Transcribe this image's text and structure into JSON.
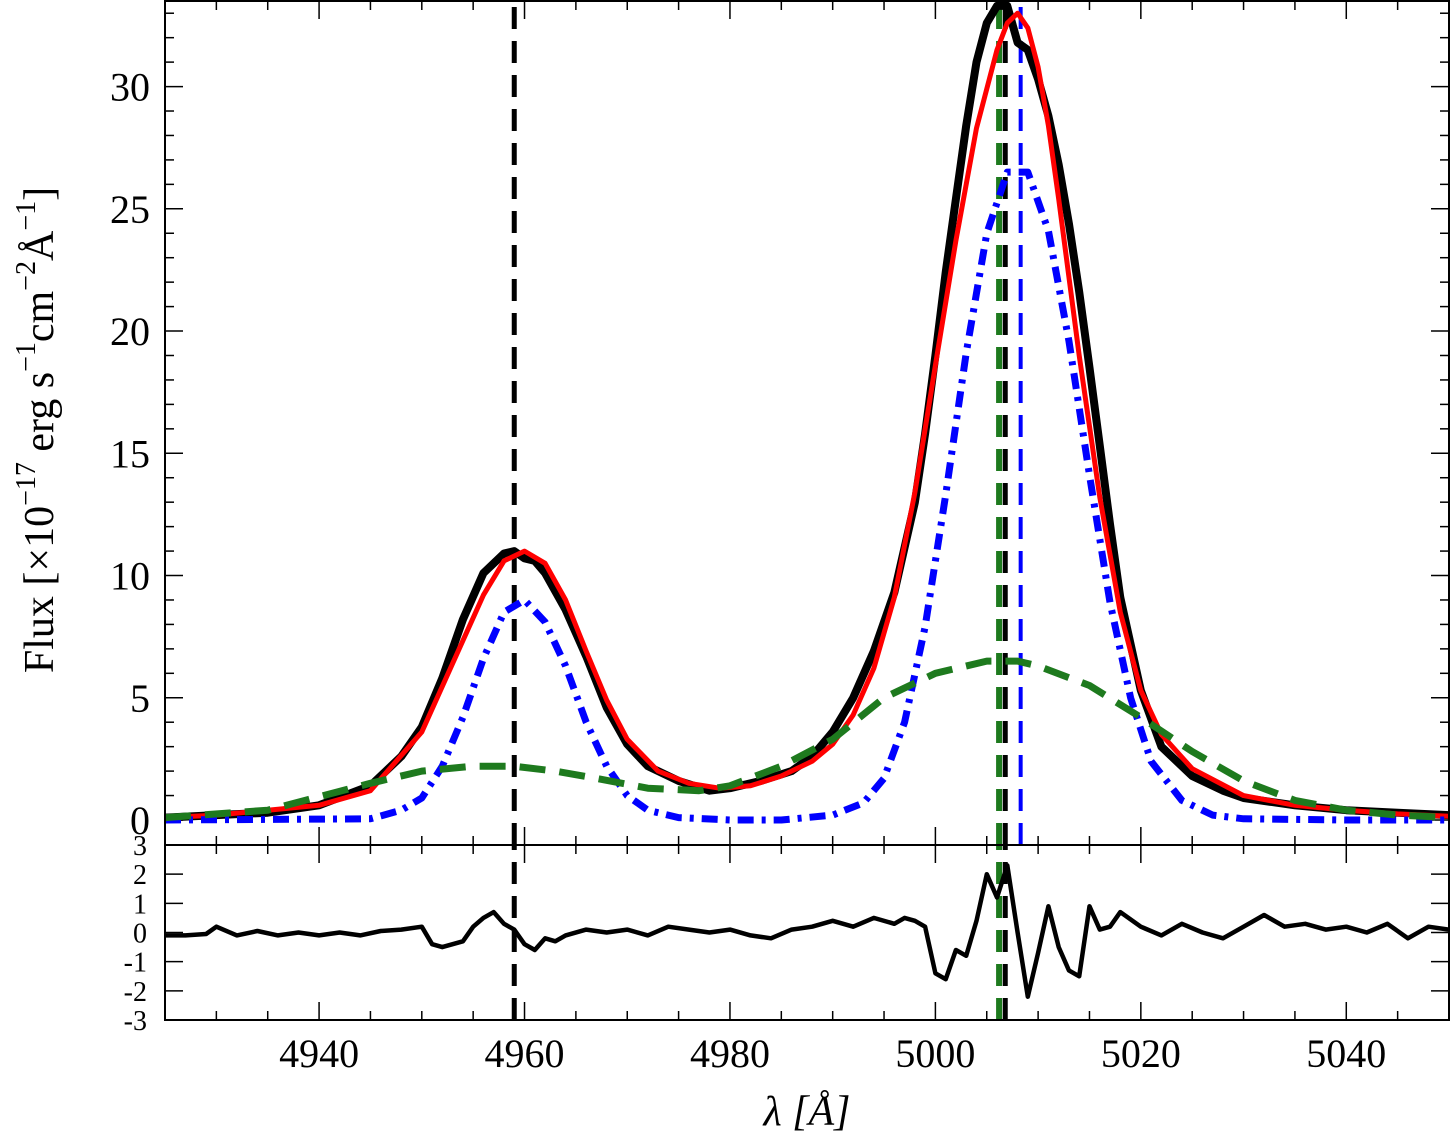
{
  "chart_data": [
    {
      "panel": "top",
      "type": "line",
      "xlabel": "λ [Å]",
      "ylabel": "Flux [×10⁻¹⁷ erg s⁻¹ cm⁻² Å⁻¹]",
      "ylabel_parts": {
        "prefix": "Flux [×10",
        "exp1": "−17",
        "mid1": " erg s",
        "exp2": "−1",
        "mid2": "cm",
        "exp3": "−2",
        "mid3": "Å",
        "exp4": "−1",
        "suffix": "]"
      },
      "xlim": [
        4925,
        5050
      ],
      "ylim": [
        0,
        33.5
      ],
      "xticks": [
        4940,
        4960,
        4980,
        5000,
        5020,
        5040
      ],
      "yticks": [
        0,
        5,
        10,
        15,
        20,
        25,
        30
      ],
      "ytick_labels": [
        "0",
        "5",
        "10",
        "15",
        "20",
        "25",
        "30"
      ],
      "series": [
        {
          "style": "data",
          "color": "#000000",
          "x": [
            4925,
            4930,
            4935,
            4940,
            4945,
            4948,
            4950,
            4952,
            4954,
            4956,
            4958,
            4959,
            4960,
            4961,
            4962,
            4964,
            4966,
            4968,
            4970,
            4972,
            4975,
            4978,
            4980,
            4983,
            4986,
            4988,
            4990,
            4992,
            4994,
            4996,
            4998,
            4999,
            5000,
            5001,
            5002,
            5003,
            5004,
            5005,
            5006,
            5007,
            5008,
            5009,
            5010,
            5011,
            5012,
            5013,
            5014,
            5015,
            5016,
            5017,
            5018,
            5020,
            5022,
            5025,
            5028,
            5030,
            5035,
            5040,
            5045,
            5050
          ],
          "y": [
            0.1,
            0.2,
            0.3,
            0.6,
            1.4,
            2.6,
            3.8,
            5.8,
            8.2,
            10.1,
            10.9,
            11.0,
            10.7,
            10.6,
            10.1,
            8.6,
            6.7,
            4.6,
            3.1,
            2.2,
            1.6,
            1.2,
            1.3,
            1.6,
            2.0,
            2.6,
            3.6,
            5.0,
            6.9,
            9.3,
            13.0,
            15.8,
            19.0,
            22.4,
            25.4,
            28.4,
            31.0,
            32.6,
            33.3,
            33.3,
            31.8,
            31.5,
            30.3,
            28.8,
            26.8,
            24.4,
            21.6,
            18.5,
            15.3,
            12.1,
            9.1,
            5.3,
            3.0,
            1.8,
            1.2,
            0.9,
            0.6,
            0.4,
            0.3,
            0.2
          ]
        },
        {
          "style": "total fit",
          "color": "#ff0000",
          "x": [
            4925,
            4930,
            4935,
            4940,
            4945,
            4950,
            4953,
            4956,
            4958,
            4960,
            4962,
            4964,
            4966,
            4968,
            4970,
            4973,
            4976,
            4979,
            4982,
            4985,
            4988,
            4990,
            4992,
            4994,
            4996,
            4998,
            5000,
            5002,
            5004,
            5006,
            5007,
            5008,
            5009,
            5010,
            5011,
            5012,
            5014,
            5016,
            5018,
            5020,
            5022,
            5025,
            5030,
            5035,
            5040,
            5045,
            5050
          ],
          "y": [
            0.1,
            0.2,
            0.4,
            0.6,
            1.2,
            3.6,
            6.4,
            9.2,
            10.6,
            11.0,
            10.5,
            9.0,
            6.9,
            4.9,
            3.3,
            2.0,
            1.5,
            1.3,
            1.4,
            1.8,
            2.4,
            3.1,
            4.3,
            6.2,
            9.1,
            13.4,
            18.6,
            23.7,
            28.3,
            31.5,
            32.6,
            33.0,
            32.4,
            30.8,
            28.4,
            25.4,
            19.0,
            13.2,
            8.5,
            5.3,
            3.5,
            2.1,
            1.0,
            0.6,
            0.4,
            0.25,
            0.15
          ]
        },
        {
          "style": "narrow component",
          "color": "#0000ff",
          "x": [
            4925,
            4945,
            4948,
            4950,
            4952,
            4954,
            4956,
            4958,
            4960,
            4962,
            4964,
            4966,
            4968,
            4970,
            4972,
            4975,
            4980,
            4985,
            4990,
            4993,
            4995,
            4997,
            4999,
            5001,
            5003,
            5005,
            5007,
            5009,
            5011,
            5013,
            5015,
            5017,
            5019,
            5021,
            5024,
            5027,
            5030,
            5040,
            5050
          ],
          "y": [
            0,
            0.05,
            0.4,
            0.9,
            2.2,
            4.2,
            6.6,
            8.5,
            9.0,
            8.1,
            6.3,
            4.0,
            2.2,
            1.0,
            0.4,
            0.1,
            0.0,
            0.0,
            0.2,
            0.7,
            1.7,
            4.0,
            7.9,
            13.3,
            19.1,
            24.0,
            26.5,
            26.5,
            24.1,
            19.6,
            14.1,
            8.9,
            5.0,
            2.4,
            0.8,
            0.2,
            0.05,
            0,
            0
          ]
        },
        {
          "style": "broad component",
          "color": "#1e7a1e",
          "x": [
            4925,
            4935,
            4945,
            4950,
            4955,
            4959,
            4963,
            4967,
            4972,
            4977,
            4980,
            4985,
            4990,
            4995,
            5000,
            5005,
            5008,
            5010,
            5015,
            5020,
            5025,
            5030,
            5035,
            5040,
            5045,
            5050
          ],
          "y": [
            0.1,
            0.4,
            1.5,
            2.0,
            2.2,
            2.2,
            2.0,
            1.7,
            1.3,
            1.2,
            1.4,
            2.2,
            3.3,
            5.0,
            6.0,
            6.5,
            6.5,
            6.3,
            5.5,
            4.2,
            2.8,
            1.6,
            0.8,
            0.4,
            0.2,
            0.1
          ]
        }
      ],
      "vlines": [
        {
          "x": 4959.0,
          "color": "#000000",
          "style": "dashed"
        },
        {
          "x": 5006.8,
          "color": "#000000",
          "style": "dashed"
        },
        {
          "x": 5006.2,
          "color": "#1e7a1e",
          "style": "dashed"
        },
        {
          "x": 5008.3,
          "color": "#0000ff",
          "style": "dashed"
        }
      ]
    },
    {
      "panel": "bottom",
      "type": "line",
      "ylim": [
        -3,
        3
      ],
      "yticks": [
        -3,
        -2,
        -1,
        0,
        1,
        2,
        3
      ],
      "ytick_labels": [
        "-3",
        "-2",
        "-1",
        "0",
        "1",
        "2",
        "3"
      ],
      "series": [
        {
          "style": "residuals",
          "color": "#000000",
          "x": [
            4925,
            4927,
            4929,
            4930,
            4932,
            4934,
            4936,
            4938,
            4940,
            4942,
            4944,
            4946,
            4948,
            4950,
            4951,
            4952,
            4954,
            4955,
            4956,
            4957,
            4958,
            4959,
            4960,
            4961,
            4962,
            4963,
            4964,
            4966,
            4968,
            4970,
            4972,
            4974,
            4976,
            4978,
            4980,
            4982,
            4984,
            4986,
            4988,
            4990,
            4992,
            4994,
            4996,
            4997,
            4998,
            4999,
            5000,
            5001,
            5002,
            5003,
            5004,
            5005,
            5006,
            5007,
            5008,
            5009,
            5010,
            5011,
            5012,
            5013,
            5014,
            5015,
            5016,
            5017,
            5018,
            5020,
            5022,
            5024,
            5026,
            5028,
            5030,
            5032,
            5034,
            5036,
            5038,
            5040,
            5042,
            5044,
            5046,
            5048,
            5050
          ],
          "y": [
            -0.1,
            -0.1,
            -0.05,
            0.2,
            -0.1,
            0.05,
            -0.1,
            0.0,
            -0.1,
            0.0,
            -0.1,
            0.05,
            0.1,
            0.2,
            -0.4,
            -0.5,
            -0.3,
            0.2,
            0.5,
            0.7,
            0.3,
            0.1,
            -0.4,
            -0.6,
            -0.2,
            -0.3,
            -0.1,
            0.1,
            0.0,
            0.1,
            -0.1,
            0.2,
            0.1,
            0.0,
            0.1,
            -0.1,
            -0.2,
            0.1,
            0.2,
            0.4,
            0.2,
            0.5,
            0.3,
            0.5,
            0.4,
            0.2,
            -1.4,
            -1.6,
            -0.6,
            -0.8,
            0.4,
            2.0,
            1.2,
            2.3,
            0.0,
            -2.2,
            -0.7,
            0.9,
            -0.5,
            -1.3,
            -1.5,
            0.9,
            0.1,
            0.2,
            0.7,
            0.2,
            -0.1,
            0.3,
            0.0,
            -0.2,
            0.2,
            0.6,
            0.2,
            0.3,
            0.1,
            0.2,
            0.0,
            0.3,
            -0.2,
            0.2,
            0.1
          ]
        }
      ],
      "vlines": [
        {
          "x": 4959.0,
          "color": "#000000",
          "style": "dashed"
        },
        {
          "x": 5006.2,
          "color": "#1e7a1e",
          "style": "dashed"
        },
        {
          "x": 5006.8,
          "color": "#000000",
          "style": "dashed"
        }
      ]
    }
  ]
}
